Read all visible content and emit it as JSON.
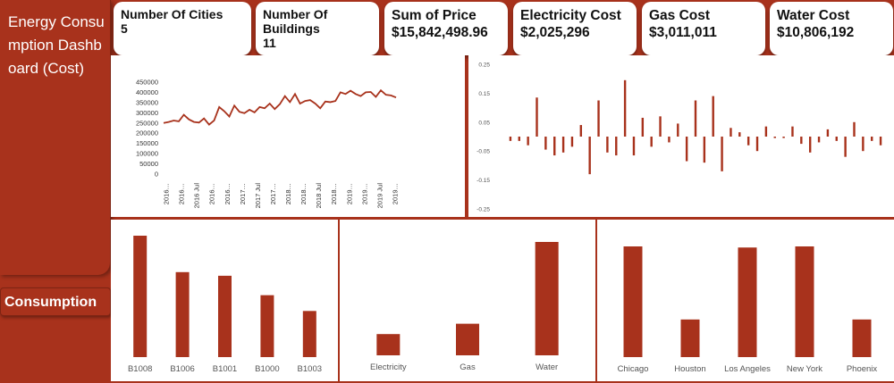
{
  "sidebar": {
    "title": "Energy Consumption Dashboard (Cost)",
    "nav_button": "Consumption"
  },
  "kpis": [
    {
      "label": "Number Of Cities",
      "value": "5"
    },
    {
      "label": "Number Of Buildings",
      "value": "11"
    },
    {
      "label": "Sum of Price",
      "value": "$15,842,498.96"
    },
    {
      "label": "Electricity Cost",
      "value": "$2,025,296"
    },
    {
      "label": "Gas Cost",
      "value": "$3,011,011"
    },
    {
      "label": "Water Cost",
      "value": "$10,806,192"
    }
  ],
  "theme": {
    "accent": "#a8321c",
    "bar": "#a8321c",
    "panel_bg": "#ffffff"
  },
  "chart_data": [
    {
      "type": "line",
      "y_ticks": [
        "0",
        "50000",
        "100000",
        "150000",
        "200000",
        "250000",
        "300000",
        "350000",
        "400000",
        "450000"
      ],
      "ylim": [
        0,
        450000
      ],
      "x_tick_labels": [
        "2016…",
        "2016…",
        "2016 Jul",
        "2016…",
        "2016…",
        "2017…",
        "2017 Jul",
        "2017…",
        "2018…",
        "2018…",
        "2018 Jul",
        "2018…",
        "2019…",
        "2019…",
        "2019 Jul",
        "2019…"
      ],
      "values": [
        250000,
        255000,
        262000,
        258000,
        290000,
        268000,
        255000,
        252000,
        272000,
        242000,
        262000,
        328000,
        308000,
        282000,
        335000,
        305000,
        298000,
        315000,
        302000,
        328000,
        322000,
        345000,
        318000,
        342000,
        382000,
        352000,
        392000,
        345000,
        358000,
        362000,
        345000,
        322000,
        355000,
        352000,
        358000,
        400000,
        392000,
        408000,
        392000,
        382000,
        400000,
        402000,
        378000,
        410000,
        388000,
        385000,
        375000
      ],
      "grid": false
    },
    {
      "type": "bar",
      "y_ticks": [
        "0.25",
        "0.15",
        "0.05",
        "-0.05",
        "-0.15",
        "-0.25"
      ],
      "ylim": [
        -0.25,
        0.25
      ],
      "values": [
        -0.015,
        -0.015,
        -0.03,
        0.135,
        -0.045,
        -0.065,
        -0.055,
        -0.035,
        0.04,
        -0.13,
        0.125,
        -0.055,
        -0.065,
        0.195,
        -0.065,
        0.065,
        -0.035,
        0.07,
        -0.02,
        0.045,
        -0.085,
        0.125,
        -0.09,
        0.14,
        -0.12,
        0.03,
        0.015,
        -0.03,
        -0.05,
        0.035,
        -0.005,
        -0.005,
        0.035,
        -0.025,
        -0.055,
        -0.02,
        0.025,
        -0.015,
        -0.07,
        0.05,
        -0.05,
        -0.015,
        -0.03
      ]
    },
    {
      "type": "bar",
      "categories": [
        "B1008",
        "B1006",
        "B1001",
        "B1000",
        "B1003"
      ],
      "values": [
        100,
        70,
        67,
        51,
        38
      ]
    },
    {
      "type": "bar",
      "categories": [
        "Electricity",
        "Gas",
        "Water"
      ],
      "values": [
        2025296,
        3011011,
        10806192
      ]
    },
    {
      "type": "bar",
      "categories": [
        "Chicago",
        "Houston",
        "Los Angeles",
        "New York",
        "Phoenix"
      ],
      "values": [
        100,
        34,
        99,
        100,
        34
      ]
    }
  ]
}
